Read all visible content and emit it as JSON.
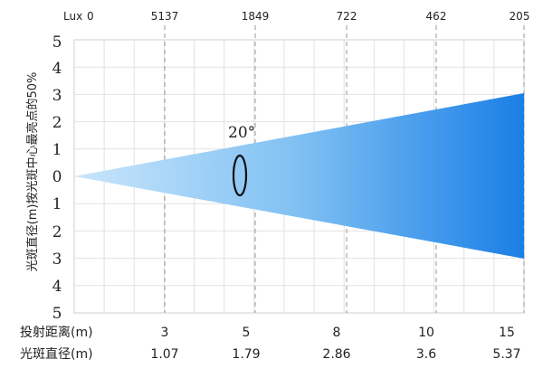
{
  "diagram": {
    "lux_header": {
      "label": "Lux",
      "values": [
        "0",
        "5137",
        "1849",
        "722",
        "462",
        "205"
      ]
    },
    "y_axis": {
      "label": "光斑直径(m)按光斑中心最亮点的50%",
      "ticks_top": [
        "5",
        "4",
        "3",
        "2",
        "1",
        "0"
      ],
      "ticks_bottom": [
        "1",
        "2",
        "3",
        "4",
        "5"
      ]
    },
    "beam_angle": "20°",
    "distance_row": {
      "label": "投射距离(m)",
      "values": [
        "3",
        "5",
        "8",
        "10",
        "15"
      ]
    },
    "diameter_row": {
      "label": "光斑直径(m)",
      "values": [
        "1.07",
        "1.79",
        "2.86",
        "3.6",
        "5.37"
      ]
    },
    "colors": {
      "beam_start": "#c9e6fb",
      "beam_end": "#1a7fe6",
      "grid": "#e2e2e2",
      "dashed": "#a6a6a6"
    }
  }
}
